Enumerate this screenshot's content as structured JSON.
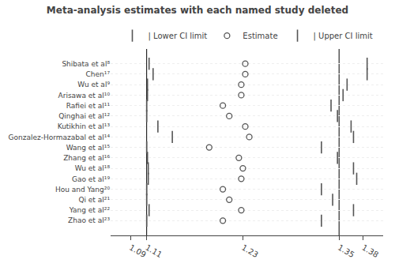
{
  "chart_data": {
    "type": "scatter",
    "orientation": "horizontal",
    "title": "Meta-analysis estimates with each named study deleted",
    "categories": [
      "Shibata et al⁸",
      "Chen¹⁷",
      "Wu et al⁹",
      "Arisawa et al¹⁰",
      "Rafiei et al¹¹",
      "Qinghai et al¹²",
      "Kutikhin et al¹³",
      "Gonzalez-Hormazabal et al¹⁴",
      "Wang et al¹⁵",
      "Zhang et al¹⁶",
      "Wu et al¹⁸",
      "Gao et al¹⁹",
      "Hou and Yang²⁰",
      "Qi et al²¹",
      "Yang et al²²",
      "Zhao et al²³"
    ],
    "series": [
      {
        "name": "| Lower CI limit",
        "color": "#555555",
        "marker": "line-ns",
        "values": [
          1.113,
          1.118,
          1.111,
          1.111,
          1.11,
          1.11,
          1.124,
          1.142,
          1.11,
          1.111,
          1.112,
          1.112,
          1.11,
          1.11,
          1.113,
          1.11
        ]
      },
      {
        "name": "Estimate",
        "color": "#555555",
        "marker": "circle-open",
        "values": [
          1.233,
          1.233,
          1.228,
          1.228,
          1.205,
          1.213,
          1.233,
          1.238,
          1.188,
          1.225,
          1.23,
          1.228,
          1.205,
          1.213,
          1.228,
          1.205
        ]
      },
      {
        "name": "| Upper CI limit",
        "color": "#555555",
        "marker": "line-ns",
        "values": [
          1.385,
          1.385,
          1.36,
          1.355,
          1.34,
          1.348,
          1.365,
          1.368,
          1.328,
          1.348,
          1.368,
          1.372,
          1.328,
          1.342,
          1.368,
          1.328
        ]
      }
    ],
    "ref_lines": [
      1.11,
      1.35
    ],
    "xlim": [
      1.065,
      1.405
    ],
    "xticks": [
      1.09,
      1.11,
      1.23,
      1.35,
      1.38
    ],
    "grid": true,
    "legend": "top"
  }
}
